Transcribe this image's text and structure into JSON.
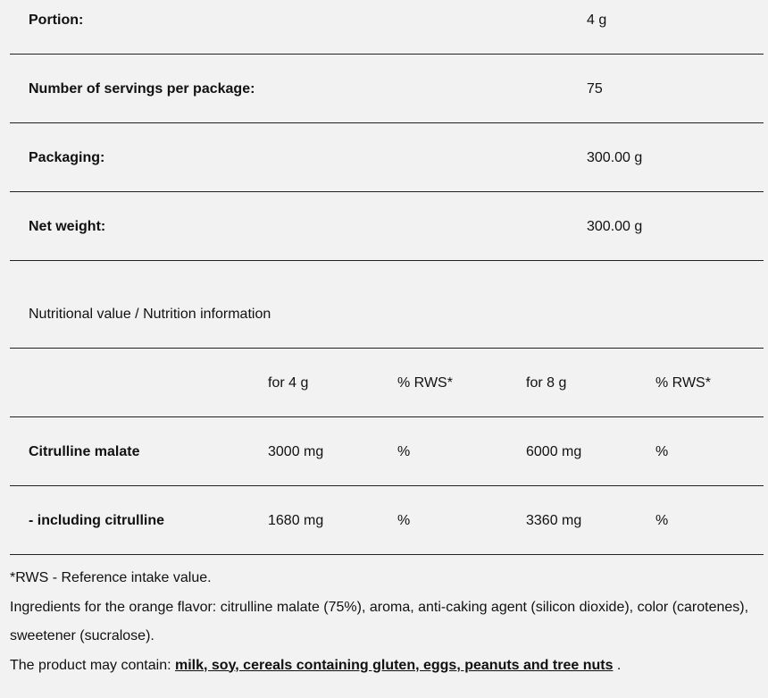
{
  "specs": [
    {
      "label": "Portion:",
      "value": "4 g"
    },
    {
      "label": "Number of servings per package:",
      "value": "75"
    },
    {
      "label": "Packaging:",
      "value": "300.00 g"
    },
    {
      "label": "Net weight:",
      "value": "300.00 g"
    }
  ],
  "nutrition": {
    "title": "Nutritional value / Nutrition information",
    "headers": [
      "",
      "for 4 g",
      "% RWS*",
      "for 8 g",
      "% RWS*"
    ],
    "rows": [
      [
        "Citrulline malate",
        "3000 mg",
        "%",
        "6000 mg",
        "%"
      ],
      [
        "- including citrulline",
        "1680 mg",
        "%",
        "3360 mg",
        "%"
      ]
    ]
  },
  "footer": {
    "rws_note": "*RWS - Reference intake value.",
    "ingredients": "Ingredients for the orange flavor: citrulline malate (75%), aroma, anti-caking agent (silicon dioxide), color (carotenes), sweetener (sucralose).",
    "allergen_prefix": "The product may contain: ",
    "allergens": "milk, soy, cereals containing gluten, eggs, peanuts and tree nuts",
    "allergen_suffix": " ."
  }
}
